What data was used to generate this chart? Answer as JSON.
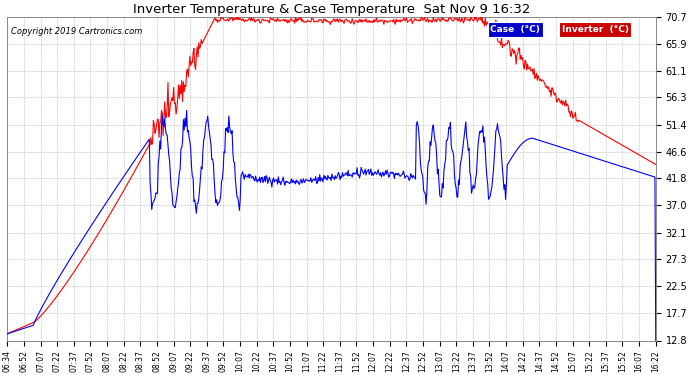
{
  "title": "Inverter Temperature & Case Temperature  Sat Nov 9 16:32",
  "copyright": "Copyright 2019 Cartronics.com",
  "yticks": [
    12.8,
    17.7,
    22.5,
    27.3,
    32.1,
    37.0,
    41.8,
    46.6,
    51.4,
    56.3,
    61.1,
    65.9,
    70.7
  ],
  "ymin": 12.8,
  "ymax": 70.7,
  "background_color": "#ffffff",
  "grid_color": "#bbbbbb",
  "legend": [
    {
      "label": "Case  (°C)",
      "bg": "#0000cc",
      "text_color": "#ffffff"
    },
    {
      "label": "Inverter  (°C)",
      "bg": "#cc0000",
      "text_color": "#ffffff"
    }
  ],
  "xtick_labels": [
    "06:34",
    "06:52",
    "07:07",
    "07:22",
    "07:37",
    "07:52",
    "08:07",
    "08:22",
    "08:37",
    "08:52",
    "09:07",
    "09:22",
    "09:37",
    "09:52",
    "10:07",
    "10:22",
    "10:37",
    "10:52",
    "11:07",
    "11:22",
    "11:37",
    "11:52",
    "12:07",
    "12:22",
    "12:37",
    "12:52",
    "13:07",
    "13:22",
    "13:37",
    "13:52",
    "14:07",
    "14:22",
    "14:37",
    "14:52",
    "15:07",
    "15:22",
    "15:37",
    "15:52",
    "16:07",
    "16:22"
  ]
}
